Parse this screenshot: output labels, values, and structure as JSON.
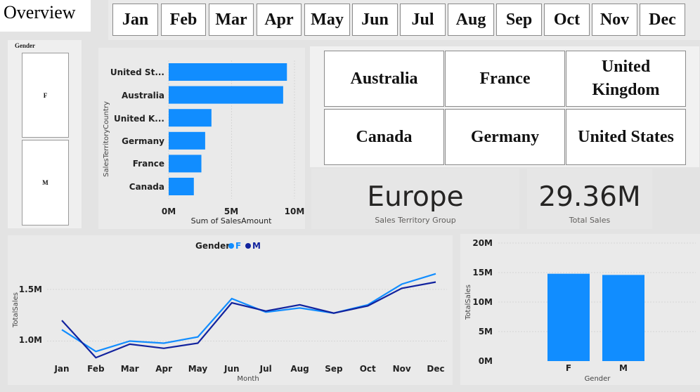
{
  "page": {
    "title": "Overview"
  },
  "months": [
    "Jan",
    "Feb",
    "Mar",
    "Apr",
    "May",
    "Jun",
    "Jul",
    "Aug",
    "Sep",
    "Oct",
    "Nov",
    "Dec"
  ],
  "gender_slicer": {
    "title": "Gender",
    "options": [
      "F",
      "M"
    ]
  },
  "countries": [
    "Australia",
    "France",
    "United Kingdom",
    "Canada",
    "Germany",
    "United States"
  ],
  "card_group": {
    "value": "Europe",
    "label": "Sales Territory Group"
  },
  "card_sales": {
    "value": "29.36M",
    "label": "Total Sales"
  },
  "colors": {
    "light_blue": "#118dff",
    "dark_blue": "#12239e"
  },
  "chart_data": [
    {
      "type": "bar",
      "orientation": "horizontal",
      "categories": [
        "United St...",
        "Australia",
        "United K...",
        "Germany",
        "France",
        "Canada"
      ],
      "values": [
        9.4,
        9.1,
        3.4,
        2.9,
        2.6,
        2.0
      ],
      "ticks": [
        "0M",
        "5M",
        "10M"
      ],
      "xlabel": "Sum of SalesAmount",
      "ylabel": "SalesTerritoryCountry",
      "xlim": [
        0,
        10
      ]
    },
    {
      "type": "line",
      "legend_title": "Gender",
      "x": [
        "Jan",
        "Feb",
        "Mar",
        "Apr",
        "May",
        "Jun",
        "Jul",
        "Aug",
        "Sep",
        "Oct",
        "Nov",
        "Dec"
      ],
      "series": [
        {
          "name": "F",
          "color": "#118dff",
          "values": [
            1.11,
            0.9,
            1.0,
            0.98,
            1.04,
            1.41,
            1.28,
            1.32,
            1.27,
            1.35,
            1.55,
            1.65
          ]
        },
        {
          "name": "M",
          "color": "#12239e",
          "values": [
            1.2,
            0.84,
            0.97,
            0.93,
            0.98,
            1.37,
            1.29,
            1.35,
            1.27,
            1.34,
            1.51,
            1.57
          ]
        }
      ],
      "ticks": [
        "1.5M",
        "1.0M"
      ],
      "tick_values": [
        1.5,
        1.0
      ],
      "xlabel": "Month",
      "ylabel": "TotalSales",
      "ylim": [
        0.8,
        1.75
      ]
    },
    {
      "type": "bar",
      "categories": [
        "F",
        "M"
      ],
      "values": [
        14.8,
        14.6
      ],
      "ticks": [
        "20M",
        "15M",
        "10M",
        "5M",
        "0M"
      ],
      "tick_values": [
        20,
        15,
        10,
        5,
        0
      ],
      "xlabel": "Gender",
      "ylabel": "TotalSales",
      "ylim": [
        0,
        20
      ]
    }
  ]
}
